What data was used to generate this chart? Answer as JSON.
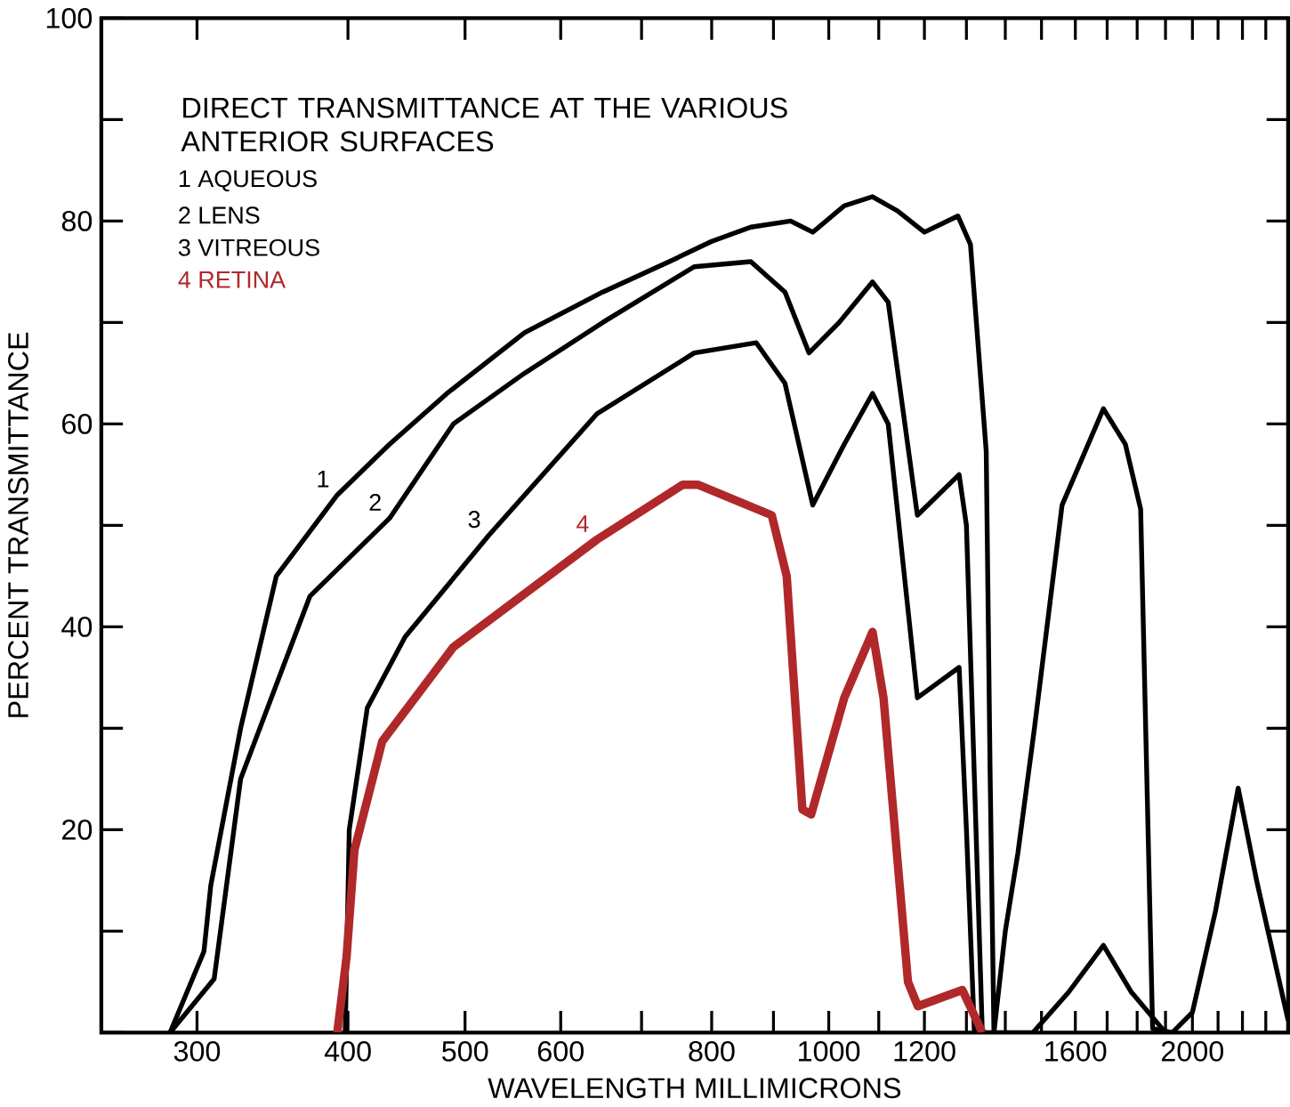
{
  "chart_data": {
    "type": "line",
    "xlabel": "WAVELENGTH   MILLIMICRONS",
    "ylabel": "PERCENT   TRANSMITTANCE",
    "legend_title": "DIRECT TRANSMITTANCE AT THE VARIOUS ANTERIOR SURFACES",
    "legend": "top left",
    "log": "x",
    "xlim": [
      250,
      2400
    ],
    "ylim": [
      0,
      100
    ],
    "xticks": [
      300,
      400,
      500,
      600,
      {
        "value": 700,
        "label": null
      },
      800,
      {
        "value": 900,
        "label": null
      },
      1000,
      {
        "value": 1100,
        "label": null
      },
      1200,
      {
        "value": 1300,
        "label": null
      },
      {
        "value": 1400,
        "label": null
      },
      {
        "value": 1500,
        "label": null
      },
      1600,
      {
        "value": 1700,
        "label": null
      },
      {
        "value": 1800,
        "label": null
      },
      {
        "value": 1900,
        "label": null
      },
      2000,
      {
        "value": 2100,
        "label": null
      },
      {
        "value": 2200,
        "label": null
      },
      {
        "value": 2300,
        "label": null
      }
    ],
    "yticks": [
      {
        "value": 0,
        "label": null
      },
      {
        "value": 10,
        "label": null
      },
      20,
      {
        "value": 30,
        "label": null
      },
      40,
      {
        "value": 50,
        "label": null
      },
      60,
      {
        "value": 70,
        "label": null
      },
      80,
      {
        "value": 90,
        "label": null
      },
      100
    ],
    "series": [
      {
        "name": "1",
        "color": "#000000",
        "x": [
          285,
          304,
          308,
          326,
          349,
          392,
          433,
          483,
          560,
          650,
          738,
          800,
          862,
          930,
          970,
          1030,
          1087,
          1140,
          1200,
          1279,
          1310,
          1350,
          1360,
          1370,
          1400,
          1434,
          1480,
          1560,
          1688,
          1760,
          1812,
          1854,
          1925,
          2000,
          2090,
          2182,
          2260,
          2400
        ],
        "values": [
          0,
          8,
          14.5,
          30,
          45,
          53,
          58,
          63,
          69,
          73,
          76,
          78,
          79.4,
          80,
          78.9,
          81.5,
          82.4,
          81,
          78.9,
          80.5,
          77.7,
          57.3,
          25.7,
          0,
          10,
          17.7,
          30,
          52,
          61.5,
          58,
          51.6,
          0.4,
          0,
          2,
          12,
          24.1,
          15,
          1.2
        ]
      },
      {
        "name": "2",
        "color": "#000000",
        "x": [
          285,
          310,
          326,
          372,
          433,
          489,
          560,
          650,
          774,
          862,
          920,
          963,
          1020,
          1087,
          1120,
          1184,
          1282,
          1300,
          1320,
          1340,
          1476,
          1580,
          1688,
          1780,
          1900
        ],
        "values": [
          0,
          5.3,
          25,
          43,
          50.7,
          60,
          65,
          70,
          75.5,
          76,
          73,
          67,
          70,
          74,
          72,
          51,
          55,
          50,
          25,
          0,
          0,
          4,
          8.6,
          4,
          0
        ]
      },
      {
        "name": "3",
        "color": "#000000",
        "x": [
          398,
          401,
          415,
          446,
          523,
          643,
          774,
          871,
          920,
          970,
          1030,
          1087,
          1120,
          1184,
          1282,
          1300,
          1320
        ],
        "values": [
          0,
          20,
          32,
          39,
          49,
          61,
          67,
          68,
          64,
          52,
          58,
          63,
          60,
          33,
          36,
          20,
          0
        ]
      },
      {
        "name": "4",
        "color": "#b0282a",
        "x": [
          392,
          399,
          405,
          427,
          489,
          643,
          757,
          780,
          897,
          923,
          951,
          967,
          1030,
          1087,
          1110,
          1163,
          1185,
          1290,
          1340
        ],
        "values": [
          0,
          7.4,
          18,
          28.7,
          38,
          48.6,
          54,
          54,
          51,
          45,
          22,
          21.5,
          33,
          39.5,
          33,
          5,
          2.6,
          4.2,
          0
        ]
      }
    ],
    "annotations": [
      "1   AQUEOUS",
      "2   LENS",
      "3   VITREOUS",
      "4   RETINA"
    ]
  }
}
